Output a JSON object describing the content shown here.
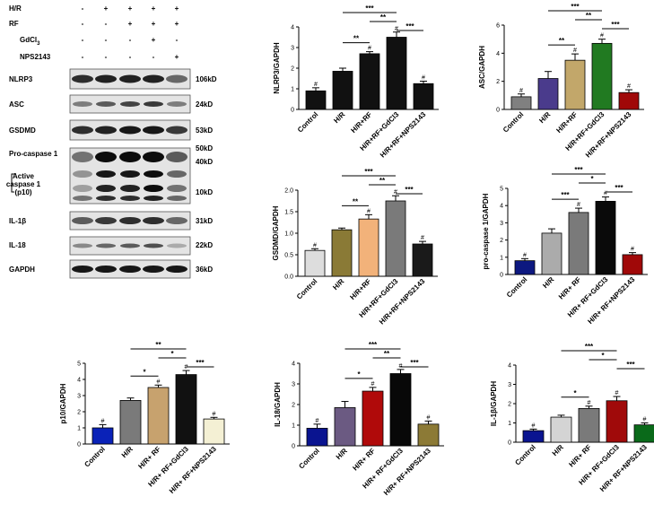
{
  "blot": {
    "conditions": [
      {
        "label": "H/R",
        "marks": [
          "-",
          "+",
          "+",
          "+",
          "+"
        ]
      },
      {
        "label": "RF",
        "marks": [
          "-",
          "-",
          "+",
          "+",
          "+"
        ]
      },
      {
        "label": "GdCl3",
        "marks": [
          "-",
          "-",
          "-",
          "+",
          "-"
        ]
      },
      {
        "label": "NPS2143",
        "marks": [
          "-",
          "-",
          "-",
          "-",
          "+"
        ]
      }
    ],
    "rows": [
      {
        "name": "NLRP3",
        "size": "106kD"
      },
      {
        "name": "ASC",
        "size": "24kD"
      },
      {
        "name": "GSDMD",
        "size": "53kD"
      },
      {
        "name": "Pro-caspase 1",
        "size": "50kD"
      },
      {
        "name": "Active caspase 1 (p10)",
        "size": "40kD",
        "size2": "10kD",
        "lines": [
          "Active",
          "caspase 1",
          "(p10)"
        ]
      },
      {
        "name": "IL-1β",
        "size": "31kD"
      },
      {
        "name": "IL-18",
        "size": "22kD"
      },
      {
        "name": "GAPDH",
        "size": "36kD"
      }
    ]
  },
  "chart_data": [
    {
      "type": "bar",
      "ylabel": "NLRP3/GAPDH",
      "ylim": [
        0,
        4
      ],
      "yticks": [
        "0",
        "1",
        "2",
        "3",
        "4"
      ],
      "categories": [
        "Control",
        "H/R",
        "H/R+RF",
        "H/R+RF+GdCl3",
        "H/R+RF+NPS2143"
      ],
      "values": [
        0.9,
        1.85,
        2.7,
        3.5,
        1.25
      ],
      "errors": [
        0.15,
        0.15,
        0.1,
        0.25,
        0.12
      ],
      "colors": [
        "#111111",
        "#111111",
        "#111111",
        "#111111",
        "#111111"
      ],
      "marks": [
        "#",
        "",
        "#",
        "#",
        "#"
      ],
      "brackets": [
        {
          "from": 1,
          "to": 2,
          "label": "**"
        },
        {
          "from": 1,
          "to": 3,
          "label": "***"
        },
        {
          "from": 2,
          "to": 3,
          "label": "**"
        },
        {
          "from": 3,
          "to": 4,
          "label": "***"
        }
      ]
    },
    {
      "type": "bar",
      "ylabel": "ASC/GAPDH",
      "ylim": [
        0,
        6
      ],
      "yticks": [
        "0",
        "2",
        "4",
        "6"
      ],
      "categories": [
        "Control",
        "H/R",
        "H/R+RF",
        "H/R+RF+GdCl3",
        "H/R+RF+NPS2143"
      ],
      "values": [
        0.9,
        2.2,
        3.5,
        4.7,
        1.2
      ],
      "errors": [
        0.2,
        0.5,
        0.45,
        0.3,
        0.2
      ],
      "colors": [
        "#808080",
        "#4a3b8c",
        "#c2a76a",
        "#217a21",
        "#a00808"
      ],
      "marks": [
        "#",
        "",
        "#",
        "#",
        "#"
      ],
      "brackets": [
        {
          "from": 1,
          "to": 2,
          "label": "**"
        },
        {
          "from": 1,
          "to": 3,
          "label": "***"
        },
        {
          "from": 2,
          "to": 3,
          "label": "**"
        },
        {
          "from": 3,
          "to": 4,
          "label": "***"
        }
      ]
    },
    {
      "type": "bar",
      "ylabel": "GSDMD/GAPDH",
      "ylim": [
        0,
        2.0
      ],
      "yticks": [
        "0.0",
        "0.5",
        "1.0",
        "1.5",
        "2.0"
      ],
      "categories": [
        "Control",
        "H/R",
        "H/R+RF",
        "H/R+RF+GdCl3",
        "H/R+RF+NPS2143"
      ],
      "values": [
        0.6,
        1.08,
        1.33,
        1.75,
        0.75
      ],
      "errors": [
        0.04,
        0.04,
        0.1,
        0.12,
        0.06
      ],
      "colors": [
        "#dddddd",
        "#8a7a36",
        "#f2b27a",
        "#7a7a7a",
        "#1a1a1a"
      ],
      "marks": [
        "#",
        "",
        "#",
        "#",
        "#"
      ],
      "brackets": [
        {
          "from": 1,
          "to": 2,
          "label": "**"
        },
        {
          "from": 1,
          "to": 3,
          "label": "***"
        },
        {
          "from": 2,
          "to": 3,
          "label": "**"
        },
        {
          "from": 3,
          "to": 4,
          "label": "***"
        }
      ]
    },
    {
      "type": "bar",
      "ylabel": "pro-caspase 1/GAPDH",
      "ylim": [
        0,
        5
      ],
      "yticks": [
        "0",
        "1",
        "2",
        "3",
        "4",
        "5"
      ],
      "categories": [
        "Control",
        "H/R",
        "H/R+ RF",
        "H/R+ RF+GdCl3",
        "H/R+ RF+NPS2143"
      ],
      "values": [
        0.8,
        2.4,
        3.6,
        4.25,
        1.15
      ],
      "errors": [
        0.12,
        0.25,
        0.25,
        0.25,
        0.12
      ],
      "colors": [
        "#0d1880",
        "#ababab",
        "#7a7a7a",
        "#0a0a0a",
        "#a00808"
      ],
      "marks": [
        "#",
        "",
        "#",
        "#",
        "#"
      ],
      "brackets": [
        {
          "from": 1,
          "to": 2,
          "label": "***"
        },
        {
          "from": 1,
          "to": 3,
          "label": "***"
        },
        {
          "from": 2,
          "to": 3,
          "label": "*"
        },
        {
          "from": 3,
          "to": 4,
          "label": "***"
        }
      ]
    },
    {
      "type": "bar",
      "ylabel": "p10/GAPDH",
      "ylim": [
        0,
        5
      ],
      "yticks": [
        "0",
        "1",
        "2",
        "3",
        "4",
        "5"
      ],
      "categories": [
        "Control",
        "H/R",
        "H/R+ RF",
        "H/R+ RF+GdCl3",
        "H/R+ RF+NPS2143"
      ],
      "values": [
        1.0,
        2.7,
        3.5,
        4.3,
        1.55
      ],
      "errors": [
        0.2,
        0.15,
        0.15,
        0.25,
        0.1
      ],
      "colors": [
        "#0a22b8",
        "#7a7a7a",
        "#c7a26e",
        "#111111",
        "#f4f0d4"
      ],
      "marks": [
        "#",
        "",
        "#",
        "#",
        "#"
      ],
      "brackets": [
        {
          "from": 1,
          "to": 2,
          "label": "*"
        },
        {
          "from": 1,
          "to": 3,
          "label": "**"
        },
        {
          "from": 2,
          "to": 3,
          "label": "*"
        },
        {
          "from": 3,
          "to": 4,
          "label": "***"
        }
      ]
    },
    {
      "type": "bar",
      "ylabel": "IL-18/GAPDH",
      "ylim": [
        0,
        4
      ],
      "yticks": [
        "0",
        "1",
        "2",
        "3",
        "4"
      ],
      "categories": [
        "Control",
        "H/R",
        "H/R+ RF",
        "H/R+ RF+GdCl3",
        "H/R+ RF+NPS2143"
      ],
      "values": [
        0.85,
        1.85,
        2.65,
        3.5,
        1.05
      ],
      "errors": [
        0.2,
        0.3,
        0.18,
        0.2,
        0.15
      ],
      "colors": [
        "#0a1490",
        "#6b5a82",
        "#b00a0a",
        "#080808",
        "#8c7a36"
      ],
      "marks": [
        "#",
        "",
        "#",
        "#",
        "#"
      ],
      "brackets": [
        {
          "from": 1,
          "to": 2,
          "label": "*"
        },
        {
          "from": 1,
          "to": 3,
          "label": "***"
        },
        {
          "from": 2,
          "to": 3,
          "label": "**"
        },
        {
          "from": 3,
          "to": 4,
          "label": "***"
        }
      ]
    },
    {
      "type": "bar",
      "ylabel": "IL-1β/GAPDH",
      "ylim": [
        0,
        4
      ],
      "yticks": [
        "0",
        "1",
        "2",
        "3",
        "4"
      ],
      "categories": [
        "Control",
        "H/R",
        "H/R+ RF",
        "H/R+ RF+GdCl3",
        "H/R+ RF+NPS2143"
      ],
      "values": [
        0.6,
        1.3,
        1.75,
        2.15,
        0.9
      ],
      "errors": [
        0.08,
        0.1,
        0.12,
        0.22,
        0.1
      ],
      "colors": [
        "#0a1490",
        "#d4d4d4",
        "#7a7a7a",
        "#a00a0a",
        "#0a6a1a"
      ],
      "marks": [
        "#",
        "",
        "#",
        "#",
        "#"
      ],
      "brackets": [
        {
          "from": 1,
          "to": 2,
          "label": "*"
        },
        {
          "from": 1,
          "to": 3,
          "label": "***"
        },
        {
          "from": 2,
          "to": 3,
          "label": "*"
        },
        {
          "from": 3,
          "to": 4,
          "label": "***"
        }
      ]
    }
  ]
}
